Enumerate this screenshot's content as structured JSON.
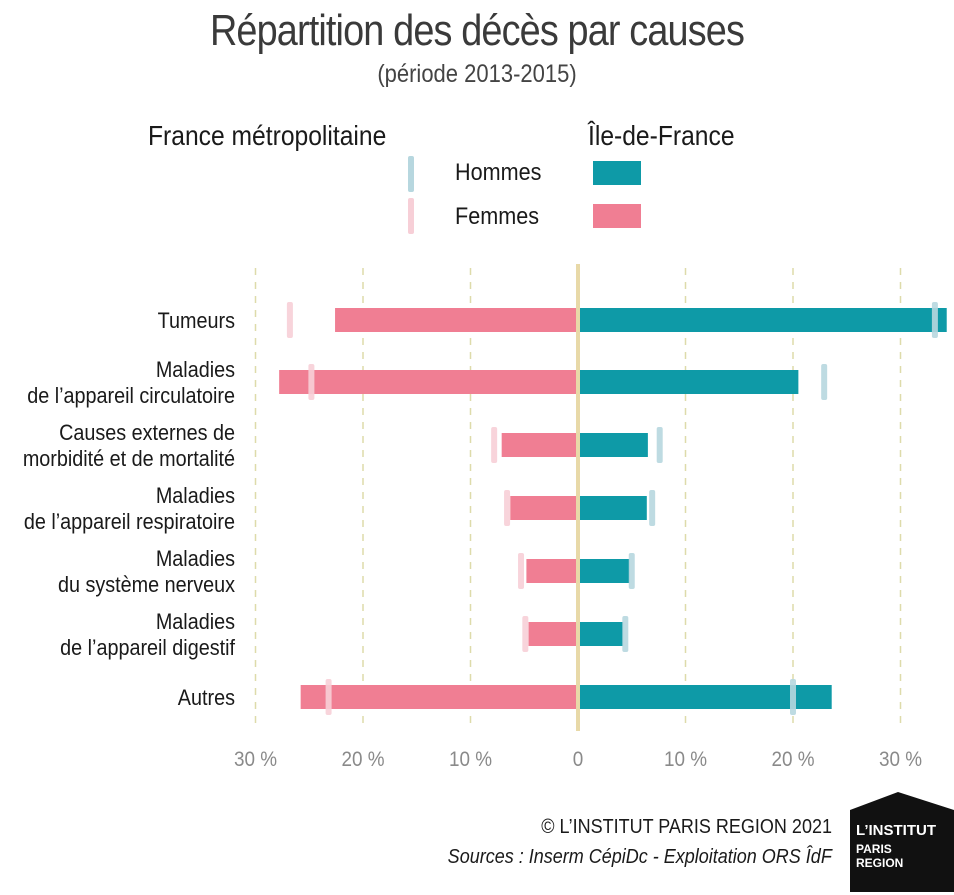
{
  "title": "Répartition des décès par causes",
  "subtitle": "(période 2013-2015)",
  "legend": {
    "france_label": "France métropolitaine",
    "idf_label": "Île-de-France",
    "hommes": "Hommes",
    "femmes": "Femmes"
  },
  "colors": {
    "hommes_idf": "#0e9aa7",
    "femmes_idf": "#f07e93",
    "hommes_france": "#b7d7df",
    "femmes_france": "#f7cfd7",
    "zero_line": "#e8d9a8",
    "grid": "#dedbaa"
  },
  "chart_data": {
    "type": "bar",
    "orientation": "horizontal",
    "categories": [
      [
        "Tumeurs"
      ],
      [
        "Maladies",
        "de l’appareil circulatoire"
      ],
      [
        "Causes externes de",
        "morbidité et de mortalité"
      ],
      [
        "Maladies",
        "de l’appareil respiratoire"
      ],
      [
        "Maladies",
        "du système nerveux"
      ],
      [
        "Maladies",
        "de l’appareil digestif"
      ],
      [
        "Autres"
      ]
    ],
    "series": [
      {
        "name": "Hommes",
        "group": "Île-de-France",
        "values": [
          34.3,
          20.5,
          6.5,
          6.4,
          4.8,
          4.2,
          23.6
        ]
      },
      {
        "name": "Femmes",
        "group": "Île-de-France",
        "values": [
          22.6,
          27.8,
          7.1,
          6.3,
          4.8,
          4.6,
          25.8
        ]
      },
      {
        "name": "Hommes",
        "group": "France métropolitaine",
        "values": [
          33.2,
          22.9,
          7.6,
          6.9,
          5.0,
          4.4,
          20.0
        ]
      },
      {
        "name": "Femmes",
        "group": "France métropolitaine",
        "values": [
          26.8,
          24.8,
          7.8,
          6.6,
          5.3,
          4.9,
          23.2
        ]
      }
    ],
    "xlim": [
      -30,
      35
    ],
    "ticks": [
      "30 %",
      "20 %",
      "10 %",
      "0",
      "10 %",
      "20 %",
      "30 %"
    ],
    "tick_values": [
      -30,
      -20,
      -10,
      0,
      10,
      20,
      30
    ],
    "grid": "vertical dashed"
  },
  "footer": {
    "copyright": "© L’INSTITUT PARIS REGION 2021",
    "sources": "Sources : Inserm CépiDc - Exploitation ORS ÎdF"
  },
  "logo": {
    "line1": "L’INSTITUT",
    "line2": "PARIS",
    "line3": "REGION"
  }
}
